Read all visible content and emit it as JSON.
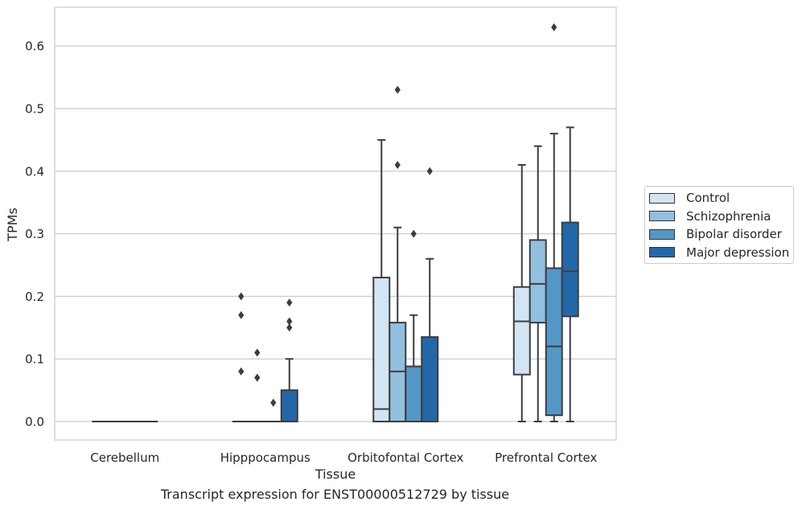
{
  "caption": "Transcript expression for ENST00000512729 by tissue",
  "chart_data": {
    "type": "boxplot",
    "xlabel": "Tissue",
    "ylabel": "TPMs",
    "ylim": [
      -0.03,
      0.663
    ],
    "yticks": [
      0.0,
      0.1,
      0.2,
      0.3,
      0.4,
      0.5,
      0.6
    ],
    "ytick_labels": [
      "0.0",
      "0.1",
      "0.2",
      "0.3",
      "0.4",
      "0.5",
      "0.6"
    ],
    "grid": "horizontal",
    "legend_position": "outside-right",
    "categories": [
      "Cerebellum",
      "Hipppocampus",
      "Orbitofontal Cortex",
      "Prefrontal Cortex"
    ],
    "series": [
      {
        "name": "Control",
        "color": "#d3e4f3",
        "boxes": [
          {
            "q1": 0,
            "median": 0,
            "q3": 0,
            "whislo": 0,
            "whishi": 0,
            "fliers": []
          },
          {
            "q1": 0,
            "median": 0,
            "q3": 0,
            "whislo": 0,
            "whishi": 0,
            "fliers": [
              0.08,
              0.17,
              0.2
            ]
          },
          {
            "q1": 0,
            "median": 0.02,
            "q3": 0.23,
            "whislo": 0,
            "whishi": 0.45,
            "fliers": []
          },
          {
            "q1": 0.075,
            "median": 0.16,
            "q3": 0.215,
            "whislo": 0,
            "whishi": 0.41,
            "fliers": []
          }
        ]
      },
      {
        "name": "Schizophrenia",
        "color": "#92c0df",
        "boxes": [
          {
            "q1": 0,
            "median": 0,
            "q3": 0,
            "whislo": 0,
            "whishi": 0,
            "fliers": []
          },
          {
            "q1": 0,
            "median": 0,
            "q3": 0,
            "whislo": 0,
            "whishi": 0,
            "fliers": [
              0.07,
              0.11
            ]
          },
          {
            "q1": 0,
            "median": 0.08,
            "q3": 0.158,
            "whislo": 0,
            "whishi": 0.31,
            "fliers": [
              0.41,
              0.53
            ]
          },
          {
            "q1": 0.158,
            "median": 0.22,
            "q3": 0.29,
            "whislo": 0,
            "whishi": 0.44,
            "fliers": []
          }
        ]
      },
      {
        "name": "Bipolar disorder",
        "color": "#5397c7",
        "boxes": [
          {
            "q1": 0,
            "median": 0,
            "q3": 0,
            "whislo": 0,
            "whishi": 0,
            "fliers": []
          },
          {
            "q1": 0,
            "median": 0,
            "q3": 0,
            "whislo": 0,
            "whishi": 0,
            "fliers": [
              0.03
            ]
          },
          {
            "q1": 0,
            "median": 0.088,
            "q3": 0.088,
            "whislo": 0,
            "whishi": 0.17,
            "fliers": [
              0.3
            ]
          },
          {
            "q1": 0.01,
            "median": 0.12,
            "q3": 0.245,
            "whislo": 0,
            "whishi": 0.46,
            "fliers": [
              0.63
            ]
          }
        ]
      },
      {
        "name": "Major depression",
        "color": "#2268a9",
        "boxes": [
          {
            "q1": 0,
            "median": 0,
            "q3": 0,
            "whislo": 0,
            "whishi": 0,
            "fliers": []
          },
          {
            "q1": 0,
            "median": 0,
            "q3": 0.05,
            "whislo": 0,
            "whishi": 0.1,
            "fliers": [
              0.15,
              0.16,
              0.19
            ]
          },
          {
            "q1": 0,
            "median": 0.135,
            "q3": 0.135,
            "whislo": 0,
            "whishi": 0.26,
            "fliers": [
              0.4
            ]
          },
          {
            "q1": 0.168,
            "median": 0.24,
            "q3": 0.318,
            "whislo": 0,
            "whishi": 0.47,
            "fliers": []
          }
        ]
      }
    ]
  }
}
